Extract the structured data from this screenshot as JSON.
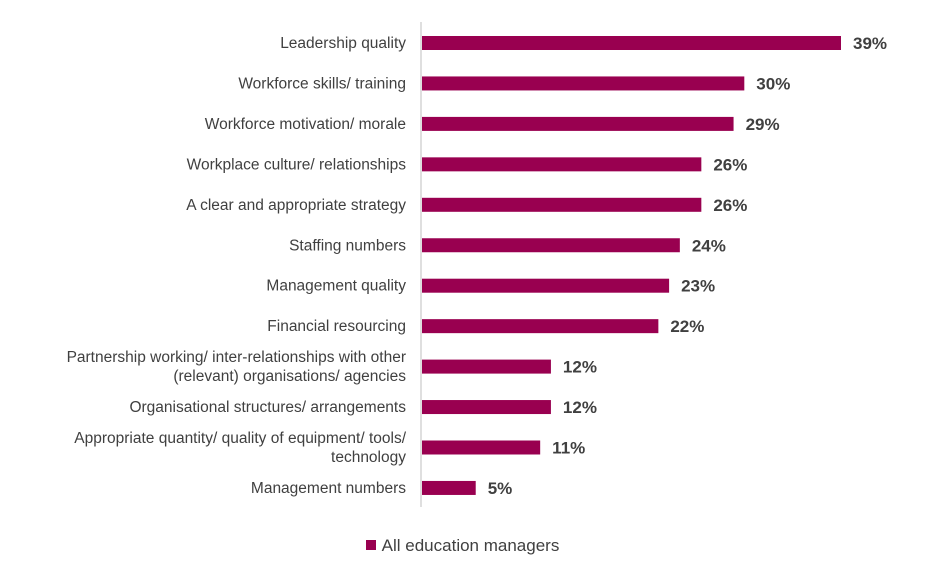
{
  "chart_data": {
    "type": "bar",
    "orientation": "horizontal",
    "categories": [
      "Leadership quality",
      "Workforce skills/ training",
      "Workforce motivation/ morale",
      "Workplace culture/ relationships",
      "A clear and appropriate strategy",
      "Staffing numbers",
      "Management quality",
      "Financial resourcing",
      "Partnership working/ inter-relationships with other (relevant) organisations/ agencies",
      "Organisational structures/ arrangements",
      "Appropriate quantity/ quality of equipment/ tools/ technology",
      "Management numbers"
    ],
    "category_lines": [
      [
        "Leadership quality"
      ],
      [
        "Workforce skills/ training"
      ],
      [
        "Workforce motivation/ morale"
      ],
      [
        "Workplace culture/ relationships"
      ],
      [
        "A clear and appropriate strategy"
      ],
      [
        "Staffing numbers"
      ],
      [
        "Management quality"
      ],
      [
        "Financial resourcing"
      ],
      [
        "Partnership working/ inter-relationships with other",
        "(relevant) organisations/ agencies"
      ],
      [
        "Organisational structures/ arrangements"
      ],
      [
        "Appropriate quantity/ quality of equipment/ tools/",
        "technology"
      ],
      [
        "Management numbers"
      ]
    ],
    "series": [
      {
        "name": "All education managers",
        "values": [
          39,
          30,
          29,
          26,
          26,
          24,
          23,
          22,
          12,
          12,
          11,
          5
        ],
        "labels": [
          "39%",
          "30%",
          "29%",
          "26%",
          "26%",
          "24%",
          "23%",
          "22%",
          "12%",
          "12%",
          "11%",
          "5%"
        ]
      }
    ],
    "xlim": [
      0,
      39
    ],
    "grid": false,
    "legend_position": "bottom",
    "bar_color": "#990050",
    "axis_color": "#bfbfbf"
  }
}
